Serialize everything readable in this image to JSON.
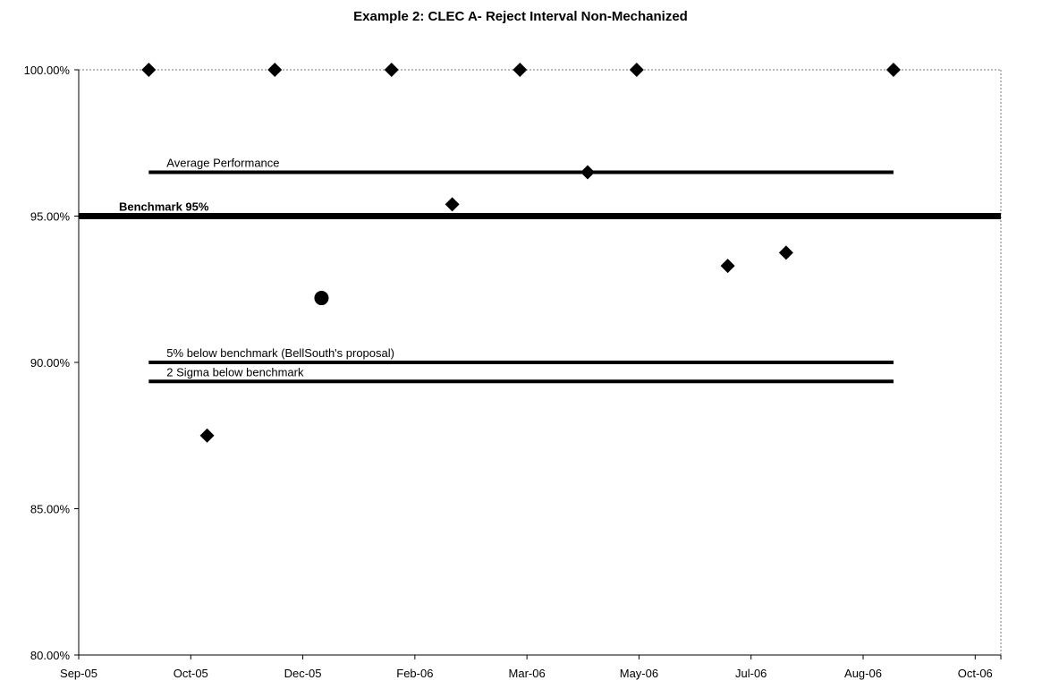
{
  "chart_data": {
    "type": "scatter",
    "title": "Example 2: CLEC A- Reject Interval Non-Mechanized",
    "xlabel": "",
    "ylabel": "",
    "x_axis": {
      "min": "2005-09-01",
      "max": "2006-10-01",
      "tick_dates": [
        "2005-09-01",
        "2005-10-19",
        "2005-12-06",
        "2006-01-23",
        "2006-03-12",
        "2006-04-29",
        "2006-06-16",
        "2006-08-03",
        "2006-09-20"
      ],
      "tick_labels": [
        "Sep-05",
        "Oct-05",
        "Dec-05",
        "Feb-06",
        "Mar-06",
        "May-06",
        "Jul-06",
        "Aug-06",
        "Oct-06"
      ]
    },
    "y_axis": {
      "min": 80,
      "max": 100,
      "ticks": [
        80,
        85,
        90,
        95,
        100
      ],
      "tick_labels": [
        "80.00%",
        "85.00%",
        "90.00%",
        "95.00%",
        "100.00%"
      ]
    },
    "grid": false,
    "legend": "none",
    "series": [
      {
        "marker": "diamond",
        "points": [
          {
            "x": "2005-10-01",
            "y": 100.0
          },
          {
            "x": "2005-10-26",
            "y": 87.5
          },
          {
            "x": "2005-11-24",
            "y": 100.0
          },
          {
            "x": "2006-01-13",
            "y": 100.0
          },
          {
            "x": "2006-02-08",
            "y": 95.4
          },
          {
            "x": "2006-03-09",
            "y": 100.0
          },
          {
            "x": "2006-04-07",
            "y": 96.5
          },
          {
            "x": "2006-04-28",
            "y": 100.0
          },
          {
            "x": "2006-06-06",
            "y": 93.3
          },
          {
            "x": "2006-07-01",
            "y": 93.75
          },
          {
            "x": "2006-08-16",
            "y": 100.0
          }
        ]
      },
      {
        "marker": "circle",
        "points": [
          {
            "x": "2005-12-14",
            "y": 92.2
          }
        ]
      }
    ],
    "reference_lines": [
      {
        "label": "Average Performance",
        "y": 96.5,
        "x_start": "2005-10-01",
        "x_end": "2006-08-16",
        "weight": "medium",
        "label_bold": false
      },
      {
        "label": "Benchmark 95%",
        "y": 95.0,
        "x_start": "2005-09-01",
        "x_end": "2006-10-01",
        "weight": "heavy",
        "label_bold": true
      },
      {
        "label": "5% below benchmark (BellSouth's proposal)",
        "y": 90.0,
        "x_start": "2005-10-01",
        "x_end": "2006-08-16",
        "weight": "medium",
        "label_bold": false
      },
      {
        "label": "2 Sigma below benchmark",
        "y": 89.35,
        "x_start": "2005-10-01",
        "x_end": "2006-08-16",
        "weight": "medium",
        "label_bold": false
      }
    ],
    "colors": {
      "marks": "#000000",
      "background": "#ffffff"
    }
  }
}
